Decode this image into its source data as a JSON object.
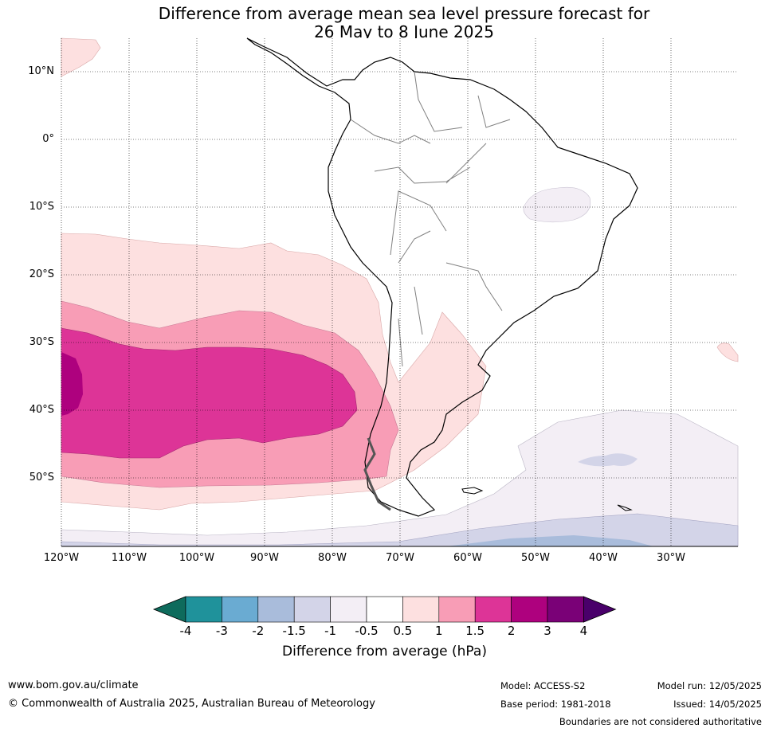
{
  "title_line1": "Difference from average mean sea level pressure forecast for",
  "title_line2": "26 May to 8 June 2025",
  "latitude_labels": [
    "10°N",
    "0°",
    "10°S",
    "20°S",
    "30°S",
    "40°S",
    "50°S"
  ],
  "longitude_labels": [
    "120°W",
    "110°W",
    "100°W",
    "90°W",
    "80°W",
    "70°W",
    "60°W",
    "50°W",
    "40°W",
    "30°W"
  ],
  "colorbar": {
    "ticks": [
      "-4",
      "-3",
      "-2",
      "-1.5",
      "-1",
      "-0.5",
      "0.5",
      "1",
      "1.5",
      "2",
      "3",
      "4"
    ],
    "colors": [
      "#0e6b5c",
      "#1f929b",
      "#6aabd2",
      "#a9bcdb",
      "#d3d4e8",
      "#f3eef5",
      "#ffffff",
      "#fde0e0",
      "#f89db6",
      "#dd3497",
      "#ae017e",
      "#7a0177",
      "#49006a"
    ],
    "title": "Difference from average (hPa)"
  },
  "footer": {
    "website": "www.bom.gov.au/climate",
    "copyright": "© Commonwealth of Australia 2025, Australian Bureau of Meteorology",
    "model": "Model: ACCESS-S2",
    "base_period": "Base period: 1981-2018",
    "model_run": "Model run: 12/05/2025",
    "issued": "Issued: 14/05/2025",
    "disclaimer": "Boundaries are not considered authoritative"
  }
}
